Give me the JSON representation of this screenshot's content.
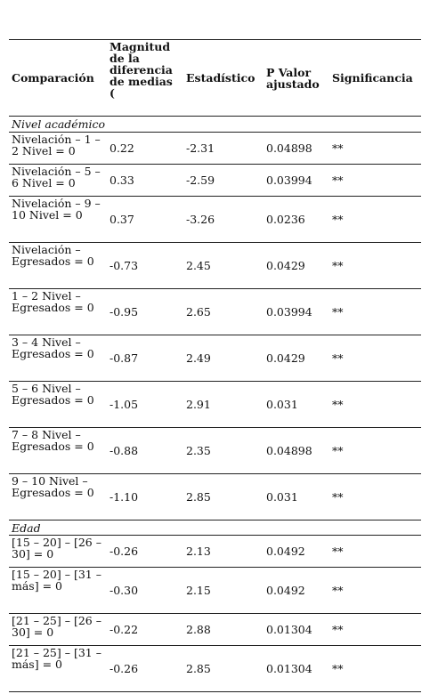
{
  "headers": {
    "comparacion": "Comparación",
    "magnitud": "Magnitud de la diferencia de medias (",
    "estadistico": "Estadístico",
    "pvalor": "P Valor ajustado",
    "significancia": "Significancia"
  },
  "sections": [
    {
      "title": "Nivel académico",
      "rows": [
        {
          "comparacion": "Nivelación – 1 – 2 Nivel = 0",
          "magnitud": "0.22",
          "estadistico": "-2.31",
          "pvalor": "0.04898",
          "significancia": "**"
        },
        {
          "comparacion": "Nivelación – 5 – 6 Nivel = 0",
          "magnitud": "0.33",
          "estadistico": "-2.59",
          "pvalor": "0.03994",
          "significancia": "**"
        },
        {
          "comparacion": "Nivelación – 9 – 10 Nivel = 0",
          "magnitud": "0.37",
          "estadistico": "-3.26",
          "pvalor": "0.0236",
          "significancia": "**"
        },
        {
          "comparacion": "Nivelación – Egresados = 0",
          "magnitud": "-0.73",
          "estadistico": "2.45",
          "pvalor": "0.0429",
          "significancia": "**"
        },
        {
          "comparacion": "1 – 2 Nivel – Egresados = 0",
          "magnitud": "-0.95",
          "estadistico": "2.65",
          "pvalor": "0.03994",
          "significancia": "**"
        },
        {
          "comparacion": "3 – 4 Nivel – Egresados = 0",
          "magnitud": "-0.87",
          "estadistico": "2.49",
          "pvalor": "0.0429",
          "significancia": "**"
        },
        {
          "comparacion": "5 – 6 Nivel – Egresados = 0",
          "magnitud": "-1.05",
          "estadistico": "2.91",
          "pvalor": "0.031",
          "significancia": "**"
        },
        {
          "comparacion": "7 – 8 Nivel – Egresados = 0",
          "magnitud": "-0.88",
          "estadistico": "2.35",
          "pvalor": "0.04898",
          "significancia": "**"
        },
        {
          "comparacion": "9 – 10 Nivel – Egresados = 0",
          "magnitud": "-1.10",
          "estadistico": "2.85",
          "pvalor": "0.031",
          "significancia": "**"
        }
      ]
    },
    {
      "title": "Edad",
      "rows": [
        {
          "comparacion": "[15 – 20] – [26 – 30] = 0",
          "magnitud": "-0.26",
          "estadistico": "2.13",
          "pvalor": "0.0492",
          "significancia": "**"
        },
        {
          "comparacion": "[15 – 20] – [31 – más] = 0",
          "magnitud": "-0.30",
          "estadistico": "2.15",
          "pvalor": "0.0492",
          "significancia": "**"
        },
        {
          "comparacion": "[21 – 25] – [26 – 30] = 0",
          "magnitud": "-0.22",
          "estadistico": "2.88",
          "pvalor": "0.01304",
          "significancia": "**"
        },
        {
          "comparacion": "[21 – 25] – [31 – más] = 0",
          "magnitud": "-0.26",
          "estadistico": "2.85",
          "pvalor": "0.01304",
          "significancia": "**"
        }
      ]
    }
  ]
}
